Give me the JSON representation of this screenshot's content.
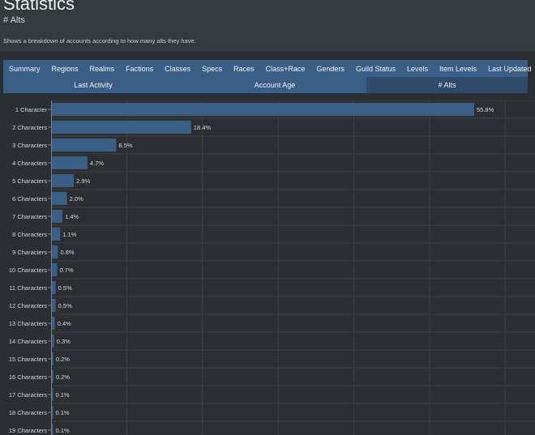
{
  "header": {
    "title": "Statistics",
    "subtitle": "# Alts",
    "description": "Shows a breakdown of accounts according to how many alts they have."
  },
  "tabs": [
    "Summary",
    "Regions",
    "Realms",
    "Factions",
    "Classes",
    "Specs",
    "Races",
    "Class+Race",
    "Genders",
    "Guild Status",
    "Levels",
    "Item Levels",
    "Last Updated"
  ],
  "subtabs": [
    {
      "label": "Last Activity",
      "active": false
    },
    {
      "label": "Account Age",
      "active": false
    },
    {
      "label": "# Alts",
      "active": true
    }
  ],
  "colors": {
    "bar": "#3b5e86",
    "background": "#2b2f33",
    "tab_bg": "#3b5e86",
    "tab_active_bg": "#2f4b69"
  },
  "chart_data": {
    "type": "bar",
    "orientation": "horizontal",
    "categories": [
      "1 Character",
      "2 Characters",
      "3 Characters",
      "4 Characters",
      "5 Characters",
      "6 Characters",
      "7 Characters",
      "8 Characters",
      "9 Characters",
      "10 Characters",
      "11 Characters",
      "12 Characters",
      "13 Characters",
      "14 Characters",
      "15 Characters",
      "16 Characters",
      "17 Characters",
      "18 Characters",
      "19 Characters"
    ],
    "values": [
      55.8,
      18.4,
      8.5,
      4.7,
      2.9,
      2.0,
      1.4,
      1.1,
      0.8,
      0.7,
      0.5,
      0.5,
      0.4,
      0.3,
      0.2,
      0.2,
      0.1,
      0.1,
      0.1
    ],
    "value_labels": [
      "55.8%",
      "18.4%",
      "8.5%",
      "4.7%",
      "2.9%",
      "2.0%",
      "1.4%",
      "1.1%",
      "0.8%",
      "0.7%",
      "0.5%",
      "0.5%",
      "0.4%",
      "0.3%",
      "0.2%",
      "0.2%",
      "0.1%",
      "0.1%",
      "0.1%"
    ],
    "xlim": [
      0,
      60
    ],
    "grid": true
  }
}
